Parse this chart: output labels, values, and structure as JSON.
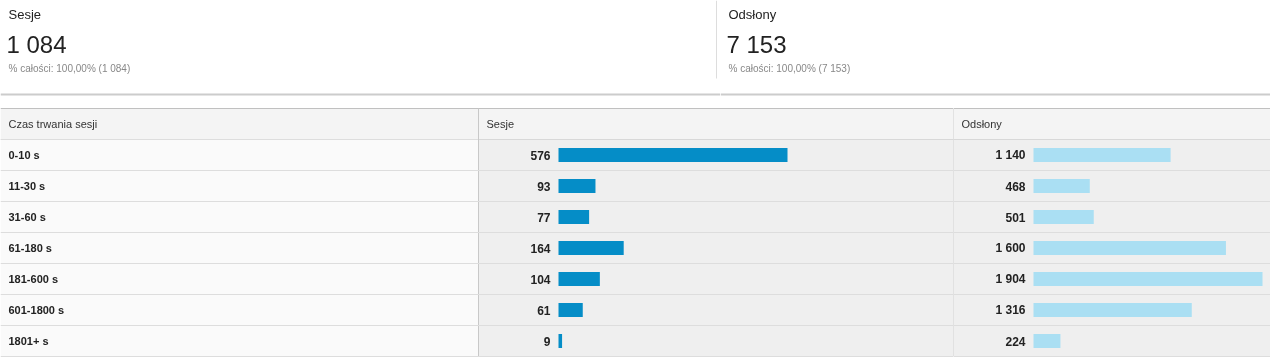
{
  "chart_data": [
    {
      "type": "other",
      "title": "Sesje",
      "annotations": [
        "1 084",
        "% całości: 100,00% (1 084)"
      ]
    },
    {
      "type": "other",
      "title": "Odsłony",
      "annotations": [
        "7 153",
        "% całości: 100,00% (7 153)"
      ]
    },
    {
      "type": "bar",
      "orientation": "horizontal",
      "ylabel": "Czas trwania sesji",
      "xlabel": "Sesje",
      "categories": [
        "0-10 s",
        "11-30 s",
        "31-60 s",
        "61-180 s",
        "181-600 s",
        "601-1800 s",
        "1801+ s"
      ],
      "values": [
        576,
        93,
        77,
        164,
        104,
        61,
        9
      ],
      "color": "#058dc7",
      "value_labels": [
        "576",
        "93",
        "77",
        "164",
        "104",
        "61",
        "9"
      ]
    },
    {
      "type": "bar",
      "orientation": "horizontal",
      "xlabel": "Odsłony",
      "categories": [
        null,
        null,
        null,
        null,
        null,
        null,
        null
      ],
      "values": [
        1140,
        468,
        501,
        1600,
        1904,
        1316,
        224
      ],
      "color": "#aadff3",
      "value_labels": [
        "1 140",
        "468",
        "501",
        "1 600",
        "1 904",
        "1 316",
        "224"
      ]
    }
  ]
}
